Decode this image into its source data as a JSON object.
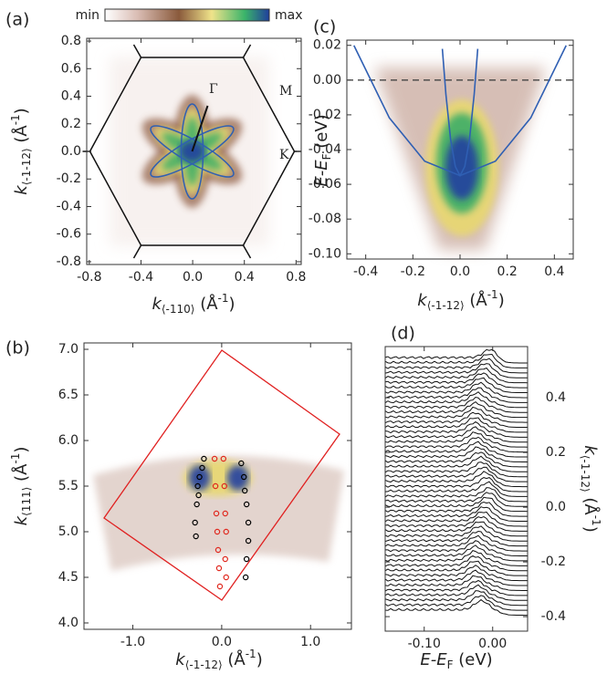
{
  "chart_data": [
    {
      "type": "heatmap",
      "panel": "(a)",
      "colorbar": {
        "min_label": "min",
        "max_label": "max"
      },
      "xlabel": [
        "k",
        "⟨-110⟩",
        " (Å",
        "-1",
        ")"
      ],
      "ylabel": [
        "k",
        "⟨-1-12⟩",
        " (Å",
        "-1",
        ")"
      ],
      "xlim": [
        -0.82,
        0.84
      ],
      "ylim": [
        -0.82,
        0.82
      ],
      "xticks": [
        -0.8,
        -0.4,
        {
          "value": 0,
          "label": "0.0"
        },
        0.4,
        0.8
      ],
      "yticks": [
        -0.8,
        -0.6,
        -0.4,
        -0.2,
        {
          "value": 0,
          "label": "0.0"
        },
        0.2,
        0.4,
        0.6,
        0.8
      ],
      "annotations": [
        "Γ",
        "M",
        "K"
      ]
    },
    {
      "type": "line",
      "panel": "(c)",
      "xlabel": [
        "k",
        "⟨-1-12⟩",
        " (Å",
        "-1",
        ")"
      ],
      "ylabel": [
        "E-E",
        "F",
        " (eV)"
      ],
      "xlim": [
        -0.48,
        0.48
      ],
      "ylim": [
        -0.103,
        0.023
      ],
      "xticks": [
        -0.4,
        -0.2,
        {
          "value": 0,
          "label": "0.0"
        },
        0.2,
        0.4
      ],
      "yticks": [
        0.02,
        {
          "value": 0,
          "label": "0.00"
        },
        -0.02,
        -0.04,
        -0.06,
        -0.08,
        {
          "value": -0.1,
          "label": "-0.10"
        }
      ],
      "hline": 0,
      "series": [
        {
          "color": "#2f5fb3",
          "x": [
            -0.45,
            -0.3,
            -0.15,
            0,
            0.15,
            0.3,
            0.45
          ],
          "values": [
            0.0199,
            -0.0217,
            -0.0467,
            -0.055,
            -0.0467,
            -0.0217,
            0.0199
          ]
        },
        {
          "color": "#2f5fb3",
          "x": [
            -0.075,
            -0.06,
            -0.04,
            -0.02,
            0,
            0.02,
            0.04,
            0.06,
            0.075
          ],
          "values": [
            0.018,
            -0.0082,
            -0.0342,
            -0.0498,
            -0.055,
            -0.0498,
            -0.0342,
            -0.0082,
            0.018
          ]
        }
      ]
    },
    {
      "type": "scatter",
      "panel": "(b)",
      "xlabel": [
        "k",
        "⟨-1-12⟩",
        " (Å",
        "-1",
        ")"
      ],
      "ylabel": [
        "k",
        "⟨111⟩",
        " (Å",
        "-1",
        ")"
      ],
      "xlim": [
        -1.55,
        1.46
      ],
      "ylim": [
        3.93,
        7.07
      ],
      "xticks": [
        {
          "value": -1,
          "label": "-1.0"
        },
        {
          "value": 0,
          "label": "0.0"
        },
        {
          "value": 1,
          "label": "1.0"
        }
      ],
      "yticks": [
        {
          "value": 4,
          "label": "4.0"
        },
        4.5,
        {
          "value": 5,
          "label": "5.0"
        },
        5.5,
        {
          "value": 6,
          "label": "6.0"
        },
        6.5,
        {
          "value": 7,
          "label": "7.0"
        }
      ],
      "series": [
        {
          "color": "#000000",
          "x": [
            -0.2,
            -0.22,
            -0.25,
            -0.27,
            -0.26,
            -0.28,
            -0.3,
            -0.29
          ],
          "values": [
            5.8,
            5.7,
            5.6,
            5.5,
            5.4,
            5.3,
            5.1,
            4.95
          ]
        },
        {
          "color": "#000000",
          "x": [
            0.22,
            0.25,
            0.26,
            0.28,
            0.3,
            0.3,
            0.28,
            0.27
          ],
          "values": [
            5.75,
            5.6,
            5.45,
            5.3,
            5.1,
            4.9,
            4.7,
            4.5
          ]
        },
        {
          "color": "#e0281e",
          "x": [
            -0.08,
            -0.07,
            -0.06,
            -0.05,
            -0.04,
            -0.03,
            -0.02
          ],
          "values": [
            5.8,
            5.5,
            5.2,
            5.0,
            4.8,
            4.6,
            4.4
          ]
        },
        {
          "color": "#e0281e",
          "x": [
            0.02,
            0.03,
            0.04,
            0.05,
            0.04,
            0.05
          ],
          "values": [
            5.8,
            5.5,
            5.2,
            5.0,
            4.7,
            4.5
          ]
        }
      ]
    },
    {
      "type": "stack",
      "panel": "(d)",
      "xlabel": [
        "E-E",
        "F",
        " (eV)"
      ],
      "ylabel": [
        "k",
        "⟨-1-12⟩",
        " (Å",
        "-1",
        ")"
      ],
      "xlim": [
        -0.157,
        0.051
      ],
      "ylim": [
        -0.453,
        0.587
      ],
      "xticks": [
        {
          "value": -0.1,
          "label": "-0.10"
        },
        {
          "value": 0,
          "label": "0.00"
        }
      ],
      "yticks": [
        -0.4,
        -0.2,
        {
          "value": 0,
          "label": "0.0"
        },
        0.2,
        0.4
      ]
    }
  ]
}
